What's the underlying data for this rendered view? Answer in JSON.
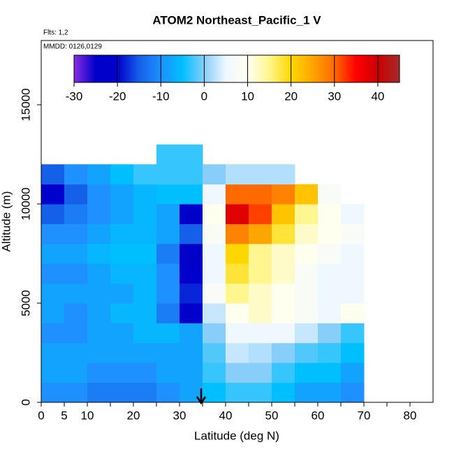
{
  "chart_data": {
    "type": "curtain",
    "title": "ATOM2 Northeast_Pacific_1 V",
    "flights_label": "Flts: 1,2",
    "date_label": "MMDD: 0126,0129",
    "xlabel": "Latitude (deg N)",
    "ylabel": "Altitude (m)",
    "xlim": [
      0,
      85
    ],
    "ylim": [
      0,
      18240
    ],
    "xticks": [
      0,
      5,
      10,
      20,
      30,
      40,
      50,
      60,
      70,
      80
    ],
    "xminorticks": [
      15,
      25,
      35,
      45,
      55,
      65,
      75
    ],
    "yticks": [
      0,
      5000,
      10000,
      15000
    ],
    "clim": [
      -30,
      45
    ],
    "cticks": [
      -30,
      -20,
      -10,
      0,
      10,
      20,
      30,
      40
    ],
    "colors": [
      "#8a2be2",
      "#0000c8",
      "#0000cd",
      "#1560e8",
      "#1e90ff",
      "#00bfff",
      "#87cefa",
      "#f0f8ff",
      "#fffff0",
      "#fff68f",
      "#ffd700",
      "#ffa500",
      "#ff6a00",
      "#ff0000",
      "#cd0000",
      "#a52a2a"
    ],
    "lat_bins": [
      0,
      5,
      10,
      15,
      20,
      25,
      30,
      35,
      40,
      45,
      50,
      55,
      60,
      65,
      70
    ],
    "alt_bins": [
      0,
      1000,
      2000,
      3000,
      4000,
      5000,
      6000,
      7000,
      8000,
      9000,
      10000,
      11000,
      12000,
      13000
    ],
    "values": [
      [
        -10,
        -10,
        -12,
        -12,
        -12,
        -10,
        -8,
        -5,
        -3,
        -3,
        -5,
        -8,
        -8,
        -10
      ],
      [
        -8,
        -8,
        -10,
        -10,
        -10,
        -8,
        -8,
        -3,
        0,
        0,
        -3,
        -5,
        -5,
        -8
      ],
      [
        -8,
        -8,
        -8,
        -8,
        -8,
        -8,
        -8,
        -2,
        3,
        2,
        0,
        -2,
        -3,
        -5
      ],
      [
        -10,
        -10,
        -8,
        -8,
        -6,
        -6,
        -8,
        0,
        5,
        5,
        5,
        3,
        0,
        -3
      ],
      [
        -8,
        -10,
        -8,
        -6,
        -6,
        -12,
        -20,
        3,
        10,
        12,
        10,
        8,
        5,
        10
      ],
      [
        -8,
        -8,
        -8,
        -8,
        -6,
        -10,
        -18,
        8,
        15,
        12,
        10,
        8,
        5,
        5
      ],
      [
        -10,
        -10,
        -8,
        -6,
        -6,
        -10,
        -20,
        5,
        18,
        15,
        12,
        8,
        5,
        5
      ],
      [
        -8,
        -8,
        -6,
        -5,
        -5,
        -12,
        -25,
        5,
        20,
        15,
        12,
        10,
        8,
        5
      ],
      [
        -10,
        -10,
        -8,
        -6,
        -6,
        -8,
        -15,
        8,
        28,
        25,
        18,
        12,
        10,
        8
      ],
      [
        -15,
        -12,
        -10,
        -8,
        -6,
        -8,
        -20,
        10,
        38,
        32,
        22,
        15,
        10,
        5
      ],
      [
        -20,
        -15,
        -10,
        -8,
        -6,
        -5,
        -5,
        5,
        30,
        30,
        28,
        22,
        8,
        null
      ],
      [
        -15,
        -10,
        -8,
        -5,
        -3,
        -3,
        -3,
        0,
        2,
        2,
        2,
        null,
        null,
        null
      ],
      [
        null,
        null,
        null,
        null,
        null,
        -3,
        -3,
        null,
        null,
        null,
        null,
        null,
        null,
        null
      ]
    ]
  }
}
